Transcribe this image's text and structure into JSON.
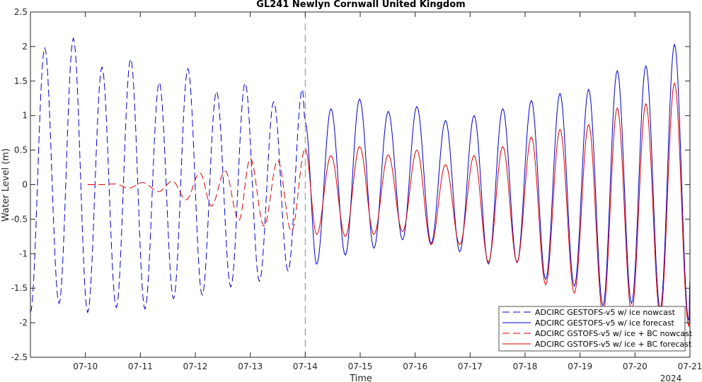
{
  "chart_data": {
    "type": "line",
    "title": "GL241 Newlyn Cornwall United Kingdom",
    "xlabel": "Time",
    "ylabel": "Water Level (m)",
    "year_label": "2024",
    "x_ticks": [
      "07-10",
      "07-11",
      "07-12",
      "07-13",
      "07-14",
      "07-15",
      "07-16",
      "07-17",
      "07-18",
      "07-19",
      "07-20",
      "07-21"
    ],
    "x_range": [
      "07-09 00:00",
      "07-21 00:00"
    ],
    "ylim": [
      -2.5,
      2.5
    ],
    "y_ticks": [
      "-2.5",
      "-2",
      "-1.5",
      "-1",
      "-0.5",
      "0",
      "0.5",
      "1",
      "1.5",
      "2",
      "2.5"
    ],
    "nowcast_forecast_divider": "07-14",
    "grid": false,
    "legend_position": "bottom-right",
    "series": [
      {
        "name": "ADCIRC GESTOFS-v5 w/ ice nowcast",
        "color": "#0000cc",
        "style": "dashed",
        "peaks": [
          [
            "07-09 00:00",
            -1.85
          ],
          [
            "07-09 06:15",
            1.98
          ],
          [
            "07-09 12:30",
            -1.72
          ],
          [
            "07-09 18:45",
            2.12
          ],
          [
            "07-10 01:00",
            -1.85
          ],
          [
            "07-10 07:15",
            1.7
          ],
          [
            "07-10 13:30",
            -1.78
          ],
          [
            "07-10 19:45",
            1.82
          ],
          [
            "07-11 02:00",
            -1.8
          ],
          [
            "07-11 08:15",
            1.48
          ],
          [
            "07-11 14:30",
            -1.65
          ],
          [
            "07-11 20:45",
            1.68
          ],
          [
            "07-12 03:00",
            -1.6
          ],
          [
            "07-12 09:15",
            1.35
          ],
          [
            "07-12 15:30",
            -1.48
          ],
          [
            "07-12 21:45",
            1.47
          ],
          [
            "07-13 04:00",
            -1.4
          ],
          [
            "07-13 10:15",
            1.2
          ],
          [
            "07-13 16:30",
            -1.25
          ],
          [
            "07-13 22:45",
            1.38
          ],
          [
            "07-14 00:00",
            0.9
          ]
        ]
      },
      {
        "name": "ADCIRC GESTOFS-v5 w/ ice forecast",
        "color": "#0000cc",
        "style": "solid",
        "peaks": [
          [
            "07-14 00:00",
            0.9
          ],
          [
            "07-14 05:00",
            -1.15
          ],
          [
            "07-14 11:15",
            1.1
          ],
          [
            "07-14 17:30",
            -1.02
          ],
          [
            "07-14 23:45",
            1.24
          ],
          [
            "07-15 06:00",
            -0.92
          ],
          [
            "07-15 12:15",
            1.06
          ],
          [
            "07-15 18:30",
            -0.8
          ],
          [
            "07-16 00:45",
            1.13
          ],
          [
            "07-16 07:00",
            -0.85
          ],
          [
            "07-16 13:15",
            0.93
          ],
          [
            "07-16 19:30",
            -0.97
          ],
          [
            "07-17 01:45",
            1.0
          ],
          [
            "07-17 08:00",
            -1.15
          ],
          [
            "07-17 14:15",
            1.1
          ],
          [
            "07-17 20:30",
            -1.13
          ],
          [
            "07-18 02:45",
            1.22
          ],
          [
            "07-18 09:00",
            -1.37
          ],
          [
            "07-18 15:15",
            1.32
          ],
          [
            "07-18 21:30",
            -1.47
          ],
          [
            "07-19 03:45",
            1.38
          ],
          [
            "07-19 10:00",
            -1.75
          ],
          [
            "07-19 16:15",
            1.65
          ],
          [
            "07-19 22:30",
            -1.72
          ],
          [
            "07-20 04:45",
            1.72
          ],
          [
            "07-20 11:00",
            -1.8
          ],
          [
            "07-20 17:15",
            2.03
          ],
          [
            "07-20 23:30",
            -1.97
          ],
          [
            "07-21 00:00",
            -1.4
          ]
        ]
      },
      {
        "name": "ADCIRC GSTOFS-v5 w/ ice + BC nowcast",
        "color": "#dd0000",
        "style": "dashed",
        "peaks": [
          [
            "07-10 01:00",
            0.0
          ],
          [
            "07-10 06:00",
            0.0
          ],
          [
            "07-10 13:00",
            0.01
          ],
          [
            "07-10 19:00",
            -0.05
          ],
          [
            "07-11 01:00",
            0.03
          ],
          [
            "07-11 08:00",
            -0.1
          ],
          [
            "07-11 14:00",
            0.05
          ],
          [
            "07-11 20:00",
            -0.22
          ],
          [
            "07-12 02:00",
            0.17
          ],
          [
            "07-12 07:00",
            -0.31
          ],
          [
            "07-12 13:00",
            0.2
          ],
          [
            "07-12 19:00",
            -0.52
          ],
          [
            "07-13 00:00",
            0.38
          ],
          [
            "07-13 06:00",
            -0.6
          ],
          [
            "07-13 12:00",
            0.35
          ],
          [
            "07-13 18:00",
            -0.68
          ],
          [
            "07-14 00:00",
            0.52
          ]
        ]
      },
      {
        "name": "ADCIRC GSTOFS-v5 w/ ice + BC forecast",
        "color": "#dd0000",
        "style": "solid",
        "peaks": [
          [
            "07-14 00:00",
            0.52
          ],
          [
            "07-14 05:00",
            -0.72
          ],
          [
            "07-14 11:15",
            0.42
          ],
          [
            "07-14 17:30",
            -0.75
          ],
          [
            "07-14 23:45",
            0.55
          ],
          [
            "07-15 06:00",
            -0.72
          ],
          [
            "07-15 12:15",
            0.43
          ],
          [
            "07-15 18:30",
            -0.68
          ],
          [
            "07-16 00:45",
            0.5
          ],
          [
            "07-16 07:00",
            -0.87
          ],
          [
            "07-16 13:15",
            0.29
          ],
          [
            "07-16 19:30",
            -0.87
          ],
          [
            "07-17 01:45",
            0.42
          ],
          [
            "07-17 08:00",
            -1.12
          ],
          [
            "07-17 14:15",
            0.55
          ],
          [
            "07-17 20:30",
            -1.12
          ],
          [
            "07-18 02:45",
            0.69
          ],
          [
            "07-18 09:00",
            -1.45
          ],
          [
            "07-18 15:15",
            0.8
          ],
          [
            "07-18 21:30",
            -1.57
          ],
          [
            "07-19 03:45",
            0.87
          ],
          [
            "07-19 10:00",
            -1.87
          ],
          [
            "07-19 16:15",
            1.11
          ],
          [
            "07-19 22:30",
            -1.85
          ],
          [
            "07-20 04:45",
            1.17
          ],
          [
            "07-20 11:00",
            -1.9
          ],
          [
            "07-20 17:15",
            1.47
          ],
          [
            "07-20 23:30",
            -2.05
          ],
          [
            "07-21 00:00",
            -1.7
          ]
        ]
      }
    ]
  }
}
